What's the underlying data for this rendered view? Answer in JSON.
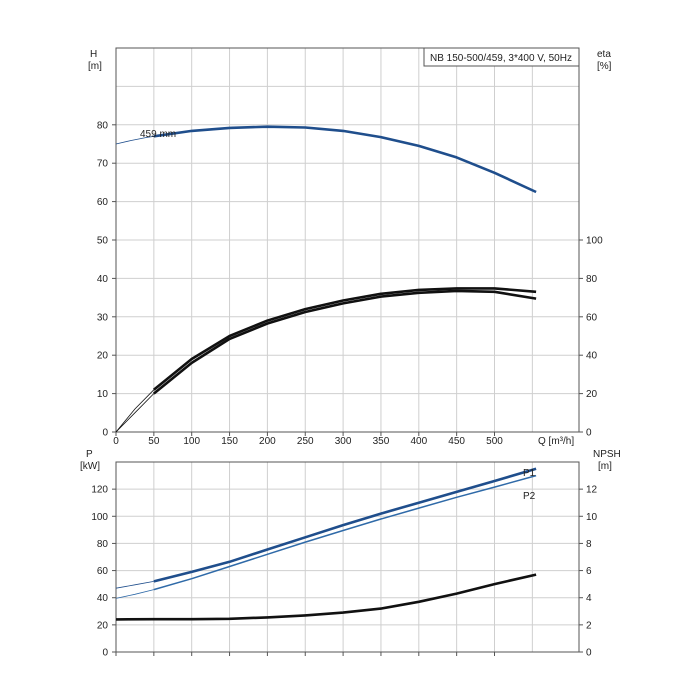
{
  "chart_data": [
    {
      "type": "line",
      "title": "NB 150-500/459, 3*400 V, 50Hz",
      "xlabel": "Q [m³/h]",
      "ylabel_name": "H",
      "ylabel_unit": "[m]",
      "y2label_name": "eta",
      "y2label_unit": "[%]",
      "xlim": [
        0,
        600
      ],
      "ylim": [
        0,
        100
      ],
      "y2lim": [
        0,
        200
      ],
      "grid": true,
      "x_ticks": [
        0,
        50,
        100,
        150,
        200,
        250,
        300,
        350,
        400,
        450,
        500
      ],
      "y_ticks": [
        0,
        10,
        20,
        30,
        40,
        50,
        60,
        70,
        80
      ],
      "y2_ticks": [
        0,
        20,
        40,
        60,
        80,
        100
      ],
      "series": [
        {
          "name": "459 mm",
          "axis": "left",
          "color": "#1f4e8c",
          "extrapolation": [
            [
              0,
              75.0
            ],
            [
              20,
              75.9
            ],
            [
              40,
              76.7
            ],
            [
              50,
              77.0
            ]
          ],
          "points": [
            [
              50,
              77.0
            ],
            [
              100,
              78.4
            ],
            [
              150,
              79.2
            ],
            [
              200,
              79.5
            ],
            [
              250,
              79.3
            ],
            [
              300,
              78.4
            ],
            [
              350,
              76.8
            ],
            [
              400,
              74.5
            ],
            [
              450,
              71.5
            ],
            [
              500,
              67.5
            ],
            [
              555,
              62.5
            ]
          ]
        },
        {
          "name": "",
          "axis": "right",
          "color": "#111111",
          "extrapolation": [
            [
              0,
              0
            ],
            [
              25,
              12
            ],
            [
              50,
              22
            ]
          ],
          "points": [
            [
              50,
              22
            ],
            [
              100,
              38
            ],
            [
              150,
              50
            ],
            [
              200,
              58
            ],
            [
              250,
              64
            ],
            [
              300,
              68.5
            ],
            [
              350,
              72
            ],
            [
              400,
              74
            ],
            [
              450,
              74.8
            ],
            [
              500,
              74.8
            ],
            [
              555,
              73
            ]
          ]
        },
        {
          "name": "",
          "axis": "right",
          "color": "#111111",
          "extrapolation": [
            [
              0,
              0
            ],
            [
              25,
              10
            ],
            [
              50,
              20
            ]
          ],
          "points": [
            [
              50,
              20
            ],
            [
              100,
              36
            ],
            [
              150,
              48.5
            ],
            [
              200,
              56.5
            ],
            [
              250,
              62.5
            ],
            [
              300,
              67
            ],
            [
              350,
              70.5
            ],
            [
              400,
              72.5
            ],
            [
              450,
              73.5
            ],
            [
              500,
              73
            ],
            [
              555,
              69.5
            ]
          ]
        }
      ]
    },
    {
      "type": "line",
      "xlim": [
        0,
        600
      ],
      "ylim": [
        0,
        140
      ],
      "y2lim": [
        0,
        14
      ],
      "ylabel_name": "P",
      "ylabel_unit": "[kW]",
      "y2label_name": "NPSH",
      "y2label_unit": "[m]",
      "grid": true,
      "x_ticks": [
        0,
        50,
        100,
        150,
        200,
        250,
        300,
        350,
        400,
        450,
        500
      ],
      "y_ticks": [
        0,
        20,
        40,
        60,
        80,
        100,
        120
      ],
      "y2_ticks": [
        0,
        2,
        4,
        6,
        8,
        10,
        12
      ],
      "series": [
        {
          "name": "P1",
          "axis": "left",
          "color": "#1f4e8c",
          "extrapolation": [
            [
              0,
              47
            ],
            [
              25,
              49.5
            ],
            [
              50,
              52
            ]
          ],
          "points": [
            [
              50,
              52
            ],
            [
              100,
              59
            ],
            [
              150,
              66.5
            ],
            [
              200,
              75.5
            ],
            [
              250,
              84.5
            ],
            [
              300,
              93.5
            ],
            [
              350,
              102
            ],
            [
              400,
              110
            ],
            [
              450,
              118
            ],
            [
              500,
              126
            ],
            [
              555,
              135
            ]
          ]
        },
        {
          "name": "P2",
          "axis": "left",
          "color": "#2f6aa8",
          "extrapolation": [
            [
              0,
              39.5
            ],
            [
              25,
              42.5
            ],
            [
              50,
              46
            ]
          ],
          "points": [
            [
              50,
              46
            ],
            [
              100,
              54
            ],
            [
              150,
              63
            ],
            [
              200,
              72
            ],
            [
              250,
              81
            ],
            [
              300,
              89.5
            ],
            [
              350,
              98
            ],
            [
              400,
              106
            ],
            [
              450,
              114
            ],
            [
              500,
              121.5
            ],
            [
              555,
              130
            ]
          ]
        },
        {
          "name": "",
          "axis": "right",
          "color": "#111111",
          "extrapolation": [
            [
              0,
              2.4
            ]
          ],
          "points": [
            [
              0,
              2.4
            ],
            [
              50,
              2.42
            ],
            [
              100,
              2.42
            ],
            [
              150,
              2.45
            ],
            [
              200,
              2.55
            ],
            [
              250,
              2.7
            ],
            [
              300,
              2.9
            ],
            [
              350,
              3.2
            ],
            [
              400,
              3.7
            ],
            [
              450,
              4.3
            ],
            [
              500,
              5.0
            ],
            [
              555,
              5.7
            ]
          ]
        }
      ]
    }
  ]
}
